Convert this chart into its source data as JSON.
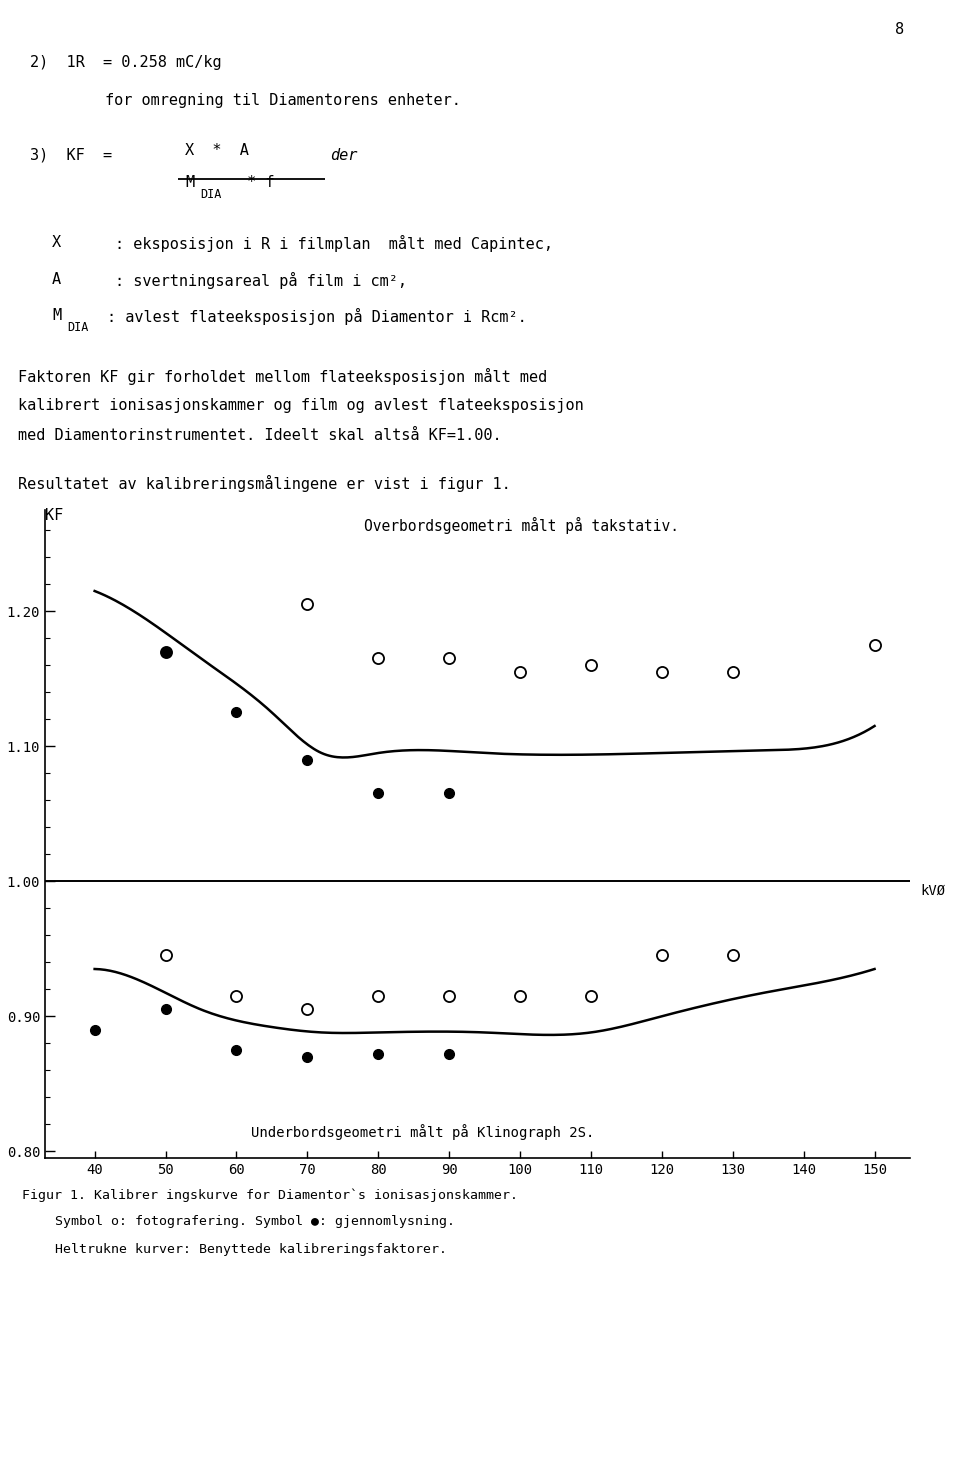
{
  "page_number": "8",
  "bg_color": "#ffffff",
  "text_color": "#000000",
  "top_open_x": [
    50,
    70,
    80,
    90,
    100,
    110,
    120,
    130,
    150
  ],
  "top_open_y": [
    1.17,
    1.205,
    1.165,
    1.165,
    1.155,
    1.16,
    1.155,
    1.155,
    1.175
  ],
  "top_filled_x": [
    50,
    60,
    70,
    80,
    90
  ],
  "top_filled_y": [
    1.17,
    1.125,
    1.09,
    1.065,
    1.065
  ],
  "top_curve_x": [
    40,
    47,
    55,
    65,
    72,
    80,
    95,
    120,
    135,
    145,
    150
  ],
  "top_curve_y": [
    1.215,
    1.195,
    1.165,
    1.125,
    1.095,
    1.095,
    1.095,
    1.095,
    1.097,
    1.103,
    1.115
  ],
  "bot_open_x": [
    50,
    60,
    70,
    80,
    90,
    100,
    110,
    120,
    130
  ],
  "bot_open_y": [
    0.945,
    0.915,
    0.905,
    0.915,
    0.915,
    0.915,
    0.915,
    0.945,
    0.945
  ],
  "bot_filled_x": [
    40,
    50,
    60,
    70,
    80,
    90
  ],
  "bot_filled_y": [
    0.89,
    0.905,
    0.875,
    0.87,
    0.872,
    0.872
  ],
  "bot_curve_x": [
    40,
    47,
    55,
    65,
    72,
    80,
    95,
    110,
    120,
    135,
    145,
    150
  ],
  "bot_curve_y": [
    0.935,
    0.925,
    0.905,
    0.892,
    0.888,
    0.888,
    0.888,
    0.888,
    0.9,
    0.918,
    0.928,
    0.935
  ],
  "ylim": [
    0.795,
    1.275
  ],
  "xlim": [
    33,
    155
  ],
  "yticks": [
    0.8,
    0.9,
    1.0,
    1.1,
    1.2
  ],
  "xticks": [
    40,
    50,
    60,
    70,
    80,
    90,
    100,
    110,
    120,
    130,
    140,
    150
  ],
  "graph_title_top": "Overbordsgeometri målt på takstativ.",
  "graph_title_bot": "Underbordsgeometri målt på Klinograph 2S.",
  "ylabel": "KF",
  "xlabel": "kVØ",
  "fig_caption1": "Figur 1. Kalibrer ingskurve for Diamentor`s ionisasjonskammer.",
  "fig_caption2": "Symbol o: fotografering. Symbol ●: gjennomlysning.",
  "fig_caption3": "Heltrukne kurver: Benyttede kalibreringsfaktorer.",
  "marker_size_open": 8,
  "marker_size_filled": 7
}
